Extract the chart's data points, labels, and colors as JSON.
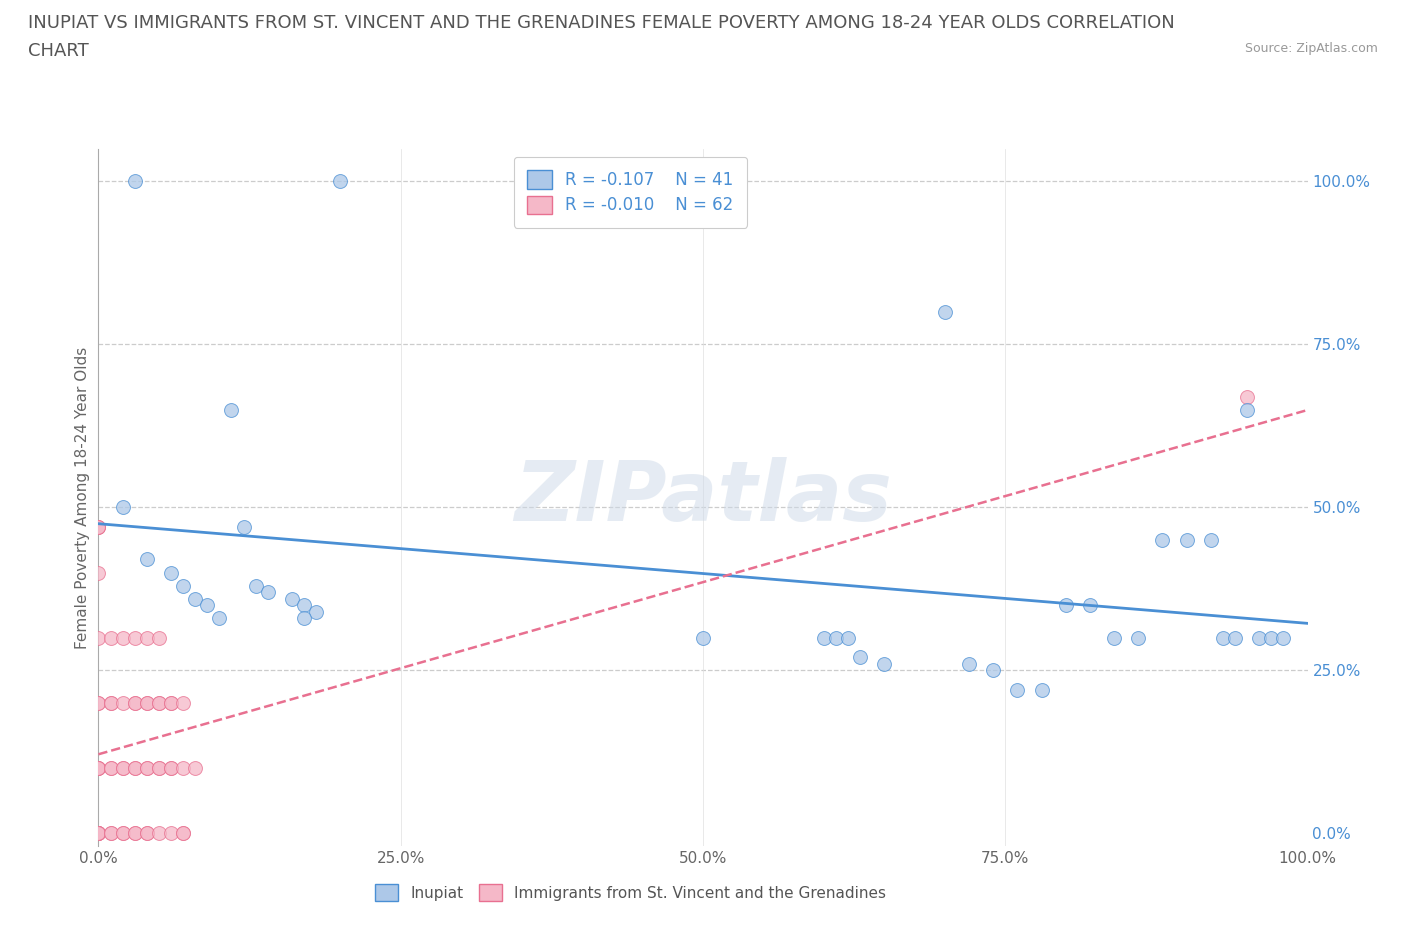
{
  "title_line1": "INUPIAT VS IMMIGRANTS FROM ST. VINCENT AND THE GRENADINES FEMALE POVERTY AMONG 18-24 YEAR OLDS CORRELATION",
  "title_line2": "CHART",
  "source": "Source: ZipAtlas.com",
  "ylabel": "Female Poverty Among 18-24 Year Olds",
  "watermark": "ZIPatlas",
  "inupiat_R": -0.107,
  "inupiat_N": 41,
  "immigrants_R": -0.01,
  "immigrants_N": 62,
  "inupiat_color": "#adc8e8",
  "immigrants_color": "#f5b8c8",
  "trendline_inupiat_color": "#4a8fd4",
  "trendline_immigrants_color": "#e87090",
  "background_color": "#ffffff",
  "grid_color": "#cccccc",
  "inupiat_x": [
    0.03,
    0.2,
    0.02,
    0.12,
    0.04,
    0.06,
    0.07,
    0.08,
    0.09,
    0.1,
    0.11,
    0.13,
    0.14,
    0.16,
    0.17,
    0.18,
    0.17,
    0.6,
    0.61,
    0.62,
    0.63,
    0.65,
    0.7,
    0.72,
    0.74,
    0.76,
    0.78,
    0.8,
    0.82,
    0.84,
    0.86,
    0.88,
    0.9,
    0.92,
    0.93,
    0.94,
    0.95,
    0.96,
    0.97,
    0.98,
    0.5
  ],
  "inupiat_y": [
    1.0,
    1.0,
    0.5,
    0.47,
    0.42,
    0.4,
    0.38,
    0.36,
    0.35,
    0.33,
    0.65,
    0.38,
    0.37,
    0.36,
    0.35,
    0.34,
    0.33,
    0.3,
    0.3,
    0.3,
    0.27,
    0.26,
    0.8,
    0.26,
    0.25,
    0.22,
    0.22,
    0.35,
    0.35,
    0.3,
    0.3,
    0.45,
    0.45,
    0.45,
    0.3,
    0.3,
    0.65,
    0.3,
    0.3,
    0.3,
    0.3
  ],
  "immigrants_x": [
    0.0,
    0.0,
    0.0,
    0.0,
    0.0,
    0.0,
    0.0,
    0.0,
    0.0,
    0.0,
    0.0,
    0.0,
    0.0,
    0.0,
    0.0,
    0.0,
    0.0,
    0.0,
    0.01,
    0.01,
    0.01,
    0.01,
    0.01,
    0.01,
    0.01,
    0.02,
    0.02,
    0.02,
    0.02,
    0.02,
    0.02,
    0.03,
    0.03,
    0.03,
    0.03,
    0.03,
    0.03,
    0.03,
    0.04,
    0.04,
    0.04,
    0.04,
    0.04,
    0.04,
    0.04,
    0.05,
    0.05,
    0.05,
    0.05,
    0.05,
    0.05,
    0.06,
    0.06,
    0.06,
    0.06,
    0.06,
    0.07,
    0.07,
    0.07,
    0.07,
    0.08,
    0.95
  ],
  "immigrants_y": [
    0.0,
    0.0,
    0.0,
    0.0,
    0.0,
    0.0,
    0.0,
    0.1,
    0.1,
    0.1,
    0.1,
    0.2,
    0.2,
    0.3,
    0.4,
    0.47,
    0.47,
    0.47,
    0.0,
    0.0,
    0.1,
    0.1,
    0.2,
    0.2,
    0.3,
    0.0,
    0.0,
    0.1,
    0.1,
    0.2,
    0.3,
    0.0,
    0.0,
    0.1,
    0.1,
    0.2,
    0.2,
    0.3,
    0.0,
    0.0,
    0.1,
    0.1,
    0.2,
    0.2,
    0.3,
    0.0,
    0.1,
    0.1,
    0.2,
    0.2,
    0.3,
    0.0,
    0.1,
    0.1,
    0.2,
    0.2,
    0.0,
    0.0,
    0.1,
    0.2,
    0.1,
    0.67
  ],
  "xlim": [
    0.0,
    1.0
  ],
  "ylim": [
    -0.02,
    1.05
  ],
  "xticks": [
    0.0,
    0.25,
    0.5,
    0.75,
    1.0
  ],
  "yticks": [
    0.0,
    0.25,
    0.5,
    0.75,
    1.0
  ],
  "xticklabels": [
    "0.0%",
    "25.0%",
    "50.0%",
    "75.0%",
    "100.0%"
  ],
  "yticklabels": [
    "0.0%",
    "25.0%",
    "50.0%",
    "75.0%",
    "100.0%"
  ],
  "title_fontsize": 13,
  "label_fontsize": 11,
  "tick_fontsize": 11,
  "legend_fontsize": 12
}
